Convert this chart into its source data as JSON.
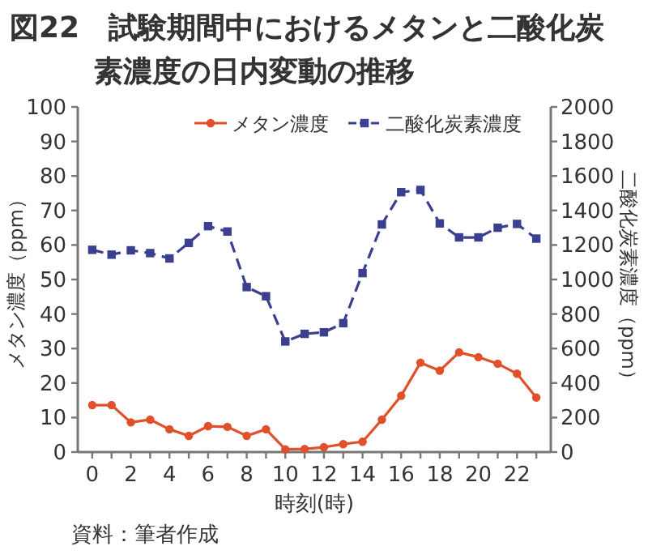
{
  "chart_data": {
    "type": "line",
    "title": "図22　試験期間中におけるメタンと二酸化炭素濃度の日内変動の推移",
    "xlabel": "時刻(時)",
    "ylabel": "メタン濃度（ppm）",
    "y2label": "二酸化炭素濃度（ppm）",
    "annotations": [
      "資料：筆者作成"
    ],
    "x": [
      0,
      1,
      2,
      3,
      4,
      5,
      6,
      7,
      8,
      9,
      10,
      11,
      12,
      13,
      14,
      15,
      16,
      17,
      18,
      19,
      20,
      21,
      22,
      23
    ],
    "series": [
      {
        "name": "メタン濃度",
        "color": "#e0502a",
        "marker": "circle",
        "line_style": "solid",
        "values": [
          13.6,
          13.6,
          8.6,
          9.4,
          6.6,
          4.7,
          7.5,
          7.3,
          4.7,
          6.6,
          0.8,
          0.9,
          1.4,
          2.3,
          3.0,
          9.4,
          16.3,
          25.9,
          23.6,
          28.9,
          27.5,
          25.6,
          22.7,
          15.8
        ]
      },
      {
        "name": "二酸化炭素濃度",
        "color": "#3a3f8f",
        "marker": "square",
        "line_style": "dashed",
        "axis": "y2",
        "values": [
          1172,
          1144,
          1169,
          1153,
          1122,
          1212,
          1309,
          1278,
          956,
          903,
          641,
          685,
          694,
          747,
          1037,
          1319,
          1506,
          1519,
          1325,
          1244,
          1244,
          1300,
          1322,
          1237
        ]
      }
    ],
    "xlim": [
      -0.75,
      23.75
    ],
    "xticks": [
      0,
      {
        "value": 1,
        "label": null
      },
      2,
      {
        "value": 3,
        "label": null
      },
      4,
      {
        "value": 5,
        "label": null
      },
      6,
      {
        "value": 7,
        "label": null
      },
      8,
      {
        "value": 9,
        "label": null
      },
      10,
      {
        "value": 11,
        "label": null
      },
      12,
      {
        "value": 13,
        "label": null
      },
      14,
      {
        "value": 15,
        "label": null
      },
      16,
      {
        "value": 17,
        "label": null
      },
      18,
      {
        "value": 19,
        "label": null
      },
      20,
      {
        "value": 21,
        "label": null
      },
      22,
      {
        "value": 23,
        "label": null
      }
    ],
    "ylim": [
      0,
      100
    ],
    "yticks": [
      0,
      10,
      20,
      30,
      40,
      50,
      60,
      70,
      80,
      90,
      100
    ],
    "y2lim": [
      0,
      2000
    ],
    "y2ticks": [
      0,
      200,
      400,
      600,
      800,
      1000,
      1200,
      1400,
      1600,
      1800,
      2000
    ],
    "grid": false,
    "legend": "top right"
  }
}
